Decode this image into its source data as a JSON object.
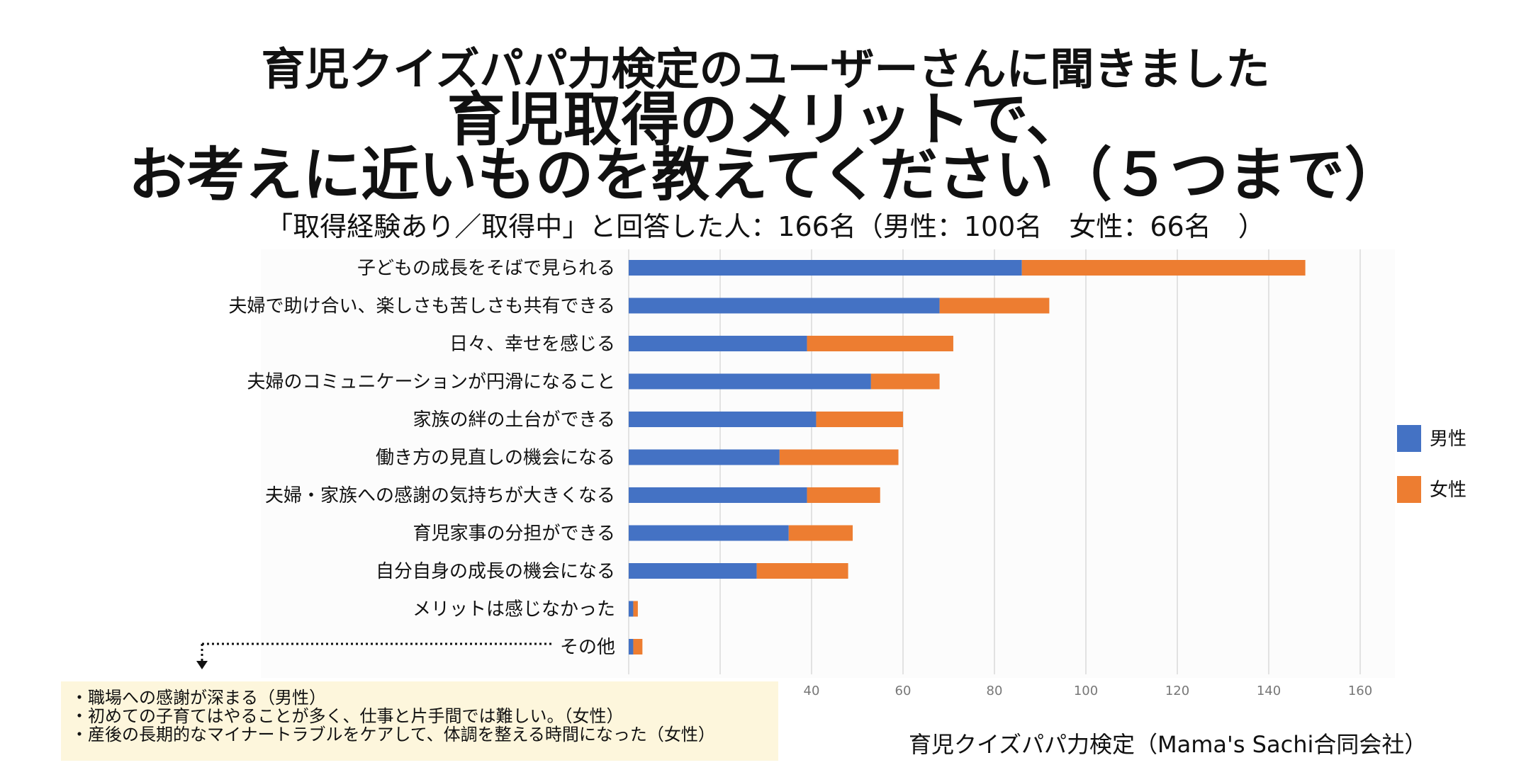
{
  "header": {
    "line1": "育児クイズパパ力検定のユーザーさんに聞きました",
    "line2": "育児取得のメリットで、",
    "line3": "お考えに近いものを教えてください（５つまで）",
    "subtitle": "「取得経験あり／取得中」と回答した人：166名（男性：100名　女性：66名　）"
  },
  "chart_data": {
    "type": "bar",
    "orientation": "horizontal",
    "stacked": true,
    "categories": [
      "子どもの成長をそばで見られる",
      "夫婦で助け合い、楽しさも苦しさも共有できる",
      "日々、幸せを感じる",
      "夫婦のコミュニケーションが円滑になること",
      "家族の絆の土台ができる",
      "働き方の見直しの機会になる",
      "夫婦・家族への感謝の気持ちが大きくなる",
      "育児家事の分担ができる",
      "自分自身の成長の機会になる",
      "メリットは感じなかった",
      "その他"
    ],
    "series": [
      {
        "name": "男性",
        "color": "#4472c4",
        "values": [
          86,
          68,
          39,
          53,
          41,
          33,
          39,
          35,
          28,
          1,
          1
        ]
      },
      {
        "name": "女性",
        "color": "#ed7d31",
        "values": [
          62,
          24,
          32,
          15,
          19,
          26,
          16,
          14,
          20,
          1,
          2
        ]
      }
    ],
    "xlim": [
      0,
      160
    ],
    "xticks": [
      "0",
      "20",
      "40",
      "60",
      "80",
      "100",
      "120",
      "140",
      "160"
    ],
    "grid": true,
    "legend": "right"
  },
  "notes": {
    "items": [
      "・職場への感謝が深まる（男性）",
      "・初めての子育てはやることが多く、仕事と片手間では難しい。（女性）",
      "・産後の長期的なマイナートラブルをケアして、体調を整える時間になった（女性）"
    ]
  },
  "footer": {
    "credit": "育児クイズパパ力検定（Mama's Sachi合同会社）"
  }
}
